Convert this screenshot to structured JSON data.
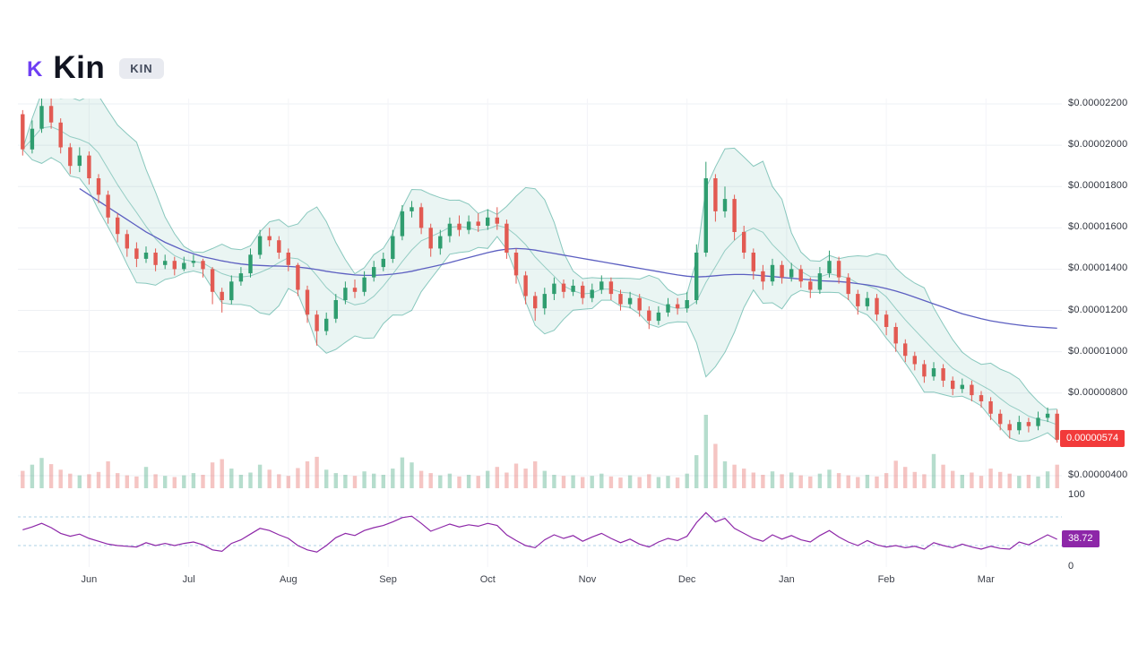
{
  "header": {
    "logo_letter": "K",
    "title": "Kin",
    "symbol_badge": "KIN"
  },
  "colors": {
    "up": "#2f9d6f",
    "down": "#e25a52",
    "band_fill": "rgba(47,158,140,0.10)",
    "band_edge": "rgba(47,158,140,0.55)",
    "band_mid": "rgba(47,158,140,0.45)",
    "ma": "#5c5fc1",
    "rsi": "#8d27a8",
    "dashed": "#aed0e6",
    "vol_up": "rgba(47,157,111,0.35)",
    "vol_down": "rgba(226,90,82,0.35)",
    "price_badge_bg": "#f23a3a",
    "rsi_badge_bg": "#8d27a8",
    "logo_purple": "#6e3ff3"
  },
  "chart_data": {
    "type": "candlestick",
    "title": "Kin (KIN)",
    "value_scale": "prices stored as USD x 1e-8 (574 = $0.00000574)",
    "legend": [
      "candles",
      "bollinger-bands",
      "long-moving-average",
      "volume",
      "rsi"
    ],
    "y_axis": [
      {
        "value": 2200,
        "label": "$0.00002200"
      },
      {
        "value": 2000,
        "label": "$0.00002000"
      },
      {
        "value": 1800,
        "label": "$0.00001800"
      },
      {
        "value": 1600,
        "label": "$0.00001600"
      },
      {
        "value": 1400,
        "label": "$0.00001400"
      },
      {
        "value": 1200,
        "label": "$0.00001200"
      },
      {
        "value": 1000,
        "label": "$0.00001000"
      },
      {
        "value": 800,
        "label": "$0.00000800"
      },
      {
        "value": 400,
        "label": "$0.00000400"
      }
    ],
    "months": [
      {
        "label": "Jun",
        "pos": 7.5
      },
      {
        "label": "Jul",
        "pos": 18
      },
      {
        "label": "Aug",
        "pos": 28.5
      },
      {
        "label": "Sep",
        "pos": 39
      },
      {
        "label": "Oct",
        "pos": 49.5
      },
      {
        "label": "Nov",
        "pos": 60
      },
      {
        "label": "Dec",
        "pos": 70.5
      },
      {
        "label": "Jan",
        "pos": 81
      },
      {
        "label": "Feb",
        "pos": 91.5
      },
      {
        "label": "Mar",
        "pos": 102
      }
    ],
    "open_first": 2150,
    "close": [
      1980,
      2080,
      2190,
      2110,
      1990,
      1900,
      1950,
      1840,
      1760,
      1650,
      1570,
      1500,
      1450,
      1480,
      1420,
      1440,
      1400,
      1430,
      1440,
      1400,
      1290,
      1250,
      1340,
      1380,
      1470,
      1560,
      1540,
      1480,
      1420,
      1300,
      1180,
      1100,
      1160,
      1250,
      1310,
      1290,
      1360,
      1410,
      1450,
      1560,
      1680,
      1700,
      1600,
      1500,
      1560,
      1620,
      1590,
      1630,
      1610,
      1650,
      1620,
      1480,
      1370,
      1270,
      1210,
      1280,
      1330,
      1290,
      1320,
      1260,
      1300,
      1340,
      1280,
      1230,
      1260,
      1200,
      1150,
      1190,
      1230,
      1210,
      1250,
      1480,
      1840,
      1680,
      1740,
      1580,
      1480,
      1390,
      1340,
      1420,
      1360,
      1400,
      1340,
      1300,
      1380,
      1440,
      1360,
      1280,
      1220,
      1260,
      1180,
      1120,
      1040,
      980,
      940,
      880,
      920,
      860,
      820,
      840,
      790,
      760,
      700,
      650,
      620,
      660,
      640,
      680,
      700,
      574
    ],
    "high": [
      2170,
      2120,
      2260,
      2230,
      2130,
      2010,
      1990,
      1970,
      1860,
      1780,
      1670,
      1590,
      1530,
      1510,
      1500,
      1470,
      1460,
      1460,
      1470,
      1450,
      1410,
      1310,
      1370,
      1410,
      1500,
      1590,
      1600,
      1560,
      1500,
      1430,
      1320,
      1200,
      1190,
      1280,
      1340,
      1350,
      1390,
      1440,
      1480,
      1590,
      1710,
      1730,
      1720,
      1620,
      1590,
      1650,
      1660,
      1660,
      1670,
      1690,
      1700,
      1640,
      1500,
      1390,
      1290,
      1310,
      1360,
      1350,
      1350,
      1340,
      1330,
      1370,
      1360,
      1300,
      1290,
      1280,
      1220,
      1220,
      1260,
      1260,
      1290,
      1520,
      1920,
      1860,
      1800,
      1760,
      1610,
      1500,
      1420,
      1450,
      1440,
      1430,
      1420,
      1360,
      1410,
      1490,
      1460,
      1380,
      1300,
      1290,
      1280,
      1200,
      1140,
      1060,
      1000,
      960,
      950,
      940,
      880,
      870,
      860,
      810,
      780,
      720,
      670,
      690,
      680,
      710,
      730,
      720
    ],
    "low": [
      1950,
      1960,
      2060,
      2080,
      1960,
      1860,
      1870,
      1810,
      1720,
      1620,
      1530,
      1460,
      1410,
      1430,
      1390,
      1400,
      1370,
      1390,
      1410,
      1360,
      1230,
      1190,
      1230,
      1320,
      1360,
      1450,
      1510,
      1450,
      1390,
      1270,
      1140,
      1030,
      1080,
      1140,
      1230,
      1260,
      1270,
      1340,
      1390,
      1430,
      1540,
      1650,
      1570,
      1460,
      1470,
      1530,
      1560,
      1570,
      1580,
      1590,
      1590,
      1450,
      1330,
      1230,
      1150,
      1180,
      1250,
      1260,
      1270,
      1230,
      1240,
      1280,
      1250,
      1200,
      1210,
      1170,
      1110,
      1130,
      1170,
      1180,
      1190,
      1230,
      1460,
      1630,
      1650,
      1540,
      1450,
      1350,
      1300,
      1320,
      1330,
      1340,
      1310,
      1260,
      1280,
      1360,
      1330,
      1250,
      1180,
      1200,
      1150,
      1080,
      1000,
      950,
      910,
      850,
      860,
      830,
      790,
      800,
      760,
      730,
      670,
      620,
      580,
      600,
      610,
      620,
      660,
      560
    ],
    "volume": [
      62,
      84,
      108,
      86,
      66,
      52,
      46,
      50,
      58,
      96,
      54,
      46,
      42,
      76,
      50,
      44,
      40,
      46,
      54,
      48,
      92,
      104,
      70,
      48,
      56,
      84,
      66,
      50,
      44,
      72,
      96,
      112,
      66,
      54,
      48,
      44,
      60,
      52,
      48,
      70,
      110,
      92,
      62,
      54,
      46,
      52,
      42,
      48,
      44,
      62,
      76,
      56,
      88,
      70,
      96,
      62,
      48,
      44,
      46,
      40,
      44,
      52,
      42,
      38,
      46,
      40,
      50,
      40,
      44,
      38,
      52,
      118,
      262,
      158,
      96,
      84,
      70,
      56,
      48,
      60,
      50,
      56,
      46,
      42,
      52,
      66,
      54,
      46,
      40,
      48,
      42,
      54,
      98,
      76,
      58,
      50,
      122,
      84,
      62,
      48,
      56,
      44,
      70,
      58,
      52,
      44,
      48,
      42,
      60,
      84
    ],
    "ma_long": [
      null,
      null,
      null,
      null,
      null,
      null,
      1790,
      1760,
      1730,
      1700,
      1670,
      1640,
      1610,
      1580,
      1555,
      1530,
      1510,
      1490,
      1475,
      1460,
      1450,
      1440,
      1432,
      1425,
      1420,
      1418,
      1416,
      1415,
      1413,
      1410,
      1405,
      1398,
      1390,
      1383,
      1377,
      1372,
      1370,
      1370,
      1372,
      1376,
      1382,
      1390,
      1400,
      1410,
      1420,
      1432,
      1444,
      1456,
      1468,
      1480,
      1490,
      1497,
      1500,
      1498,
      1492,
      1484,
      1476,
      1468,
      1460,
      1452,
      1444,
      1436,
      1428,
      1420,
      1412,
      1404,
      1396,
      1388,
      1380,
      1372,
      1366,
      1362,
      1364,
      1368,
      1372,
      1374,
      1374,
      1372,
      1368,
      1364,
      1360,
      1356,
      1352,
      1348,
      1344,
      1342,
      1340,
      1336,
      1330,
      1324,
      1316,
      1306,
      1294,
      1280,
      1264,
      1248,
      1232,
      1216,
      1200,
      1184,
      1172,
      1160,
      1150,
      1142,
      1135,
      1129,
      1124,
      1120,
      1117,
      1114
    ],
    "bollinger": {
      "window": 7,
      "mult": 2
    },
    "rsi": [
      52,
      56,
      61,
      55,
      47,
      43,
      46,
      40,
      36,
      32,
      30,
      29,
      28,
      34,
      30,
      33,
      30,
      33,
      35,
      31,
      24,
      22,
      33,
      38,
      46,
      54,
      51,
      45,
      40,
      30,
      24,
      21,
      30,
      41,
      47,
      44,
      51,
      55,
      58,
      63,
      69,
      71,
      61,
      50,
      55,
      60,
      56,
      59,
      57,
      61,
      58,
      45,
      37,
      30,
      27,
      38,
      45,
      40,
      44,
      36,
      42,
      47,
      40,
      34,
      39,
      32,
      28,
      35,
      40,
      37,
      43,
      62,
      76,
      63,
      68,
      54,
      47,
      40,
      36,
      45,
      39,
      44,
      38,
      35,
      44,
      51,
      42,
      35,
      30,
      37,
      31,
      28,
      30,
      27,
      29,
      25,
      34,
      30,
      27,
      32,
      28,
      25,
      29,
      26,
      25,
      35,
      31,
      38,
      45,
      38.72
    ],
    "rsi_axis": {
      "top": "100",
      "bottom": "0",
      "dashed_levels": [
        70,
        30
      ]
    },
    "last_price_label": "0.00000574",
    "rsi_label": "38.72"
  }
}
